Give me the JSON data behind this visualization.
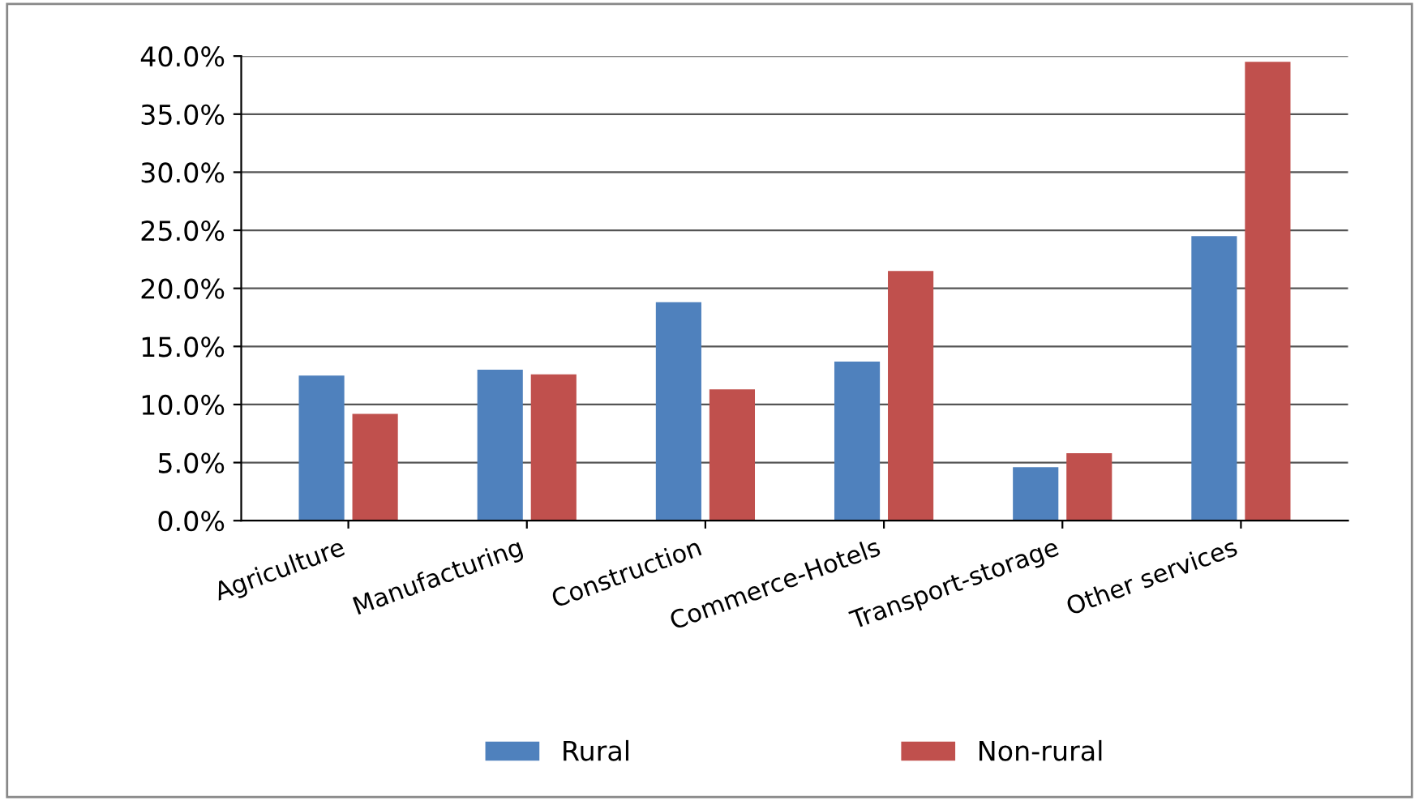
{
  "chart_data": {
    "type": "bar",
    "categories": [
      "Agriculture",
      "Manufacturing",
      "Construction",
      "Commerce-Hotels",
      "Transport-storage",
      "Other services"
    ],
    "series": [
      {
        "name": "Rural",
        "color": "#4f81bd",
        "values": [
          12.5,
          13.0,
          18.8,
          13.7,
          4.6,
          24.5
        ]
      },
      {
        "name": "Non-rural",
        "color": "#c0504d",
        "values": [
          9.2,
          12.6,
          11.3,
          21.5,
          5.8,
          39.5
        ]
      }
    ],
    "ylim": [
      0,
      40
    ],
    "yticks": [
      {
        "value": 0,
        "label": "0.0%"
      },
      {
        "value": 5,
        "label": "5.0%"
      },
      {
        "value": 10,
        "label": "10.0%"
      },
      {
        "value": 15,
        "label": "15.0%"
      },
      {
        "value": 20,
        "label": "20.0%"
      },
      {
        "value": 25,
        "label": "25.0%"
      },
      {
        "value": 30,
        "label": "30.0%"
      },
      {
        "value": 35,
        "label": "35.0%"
      },
      {
        "value": 40,
        "label": "40.0%"
      }
    ],
    "grid": "y",
    "legend": "bottom"
  }
}
